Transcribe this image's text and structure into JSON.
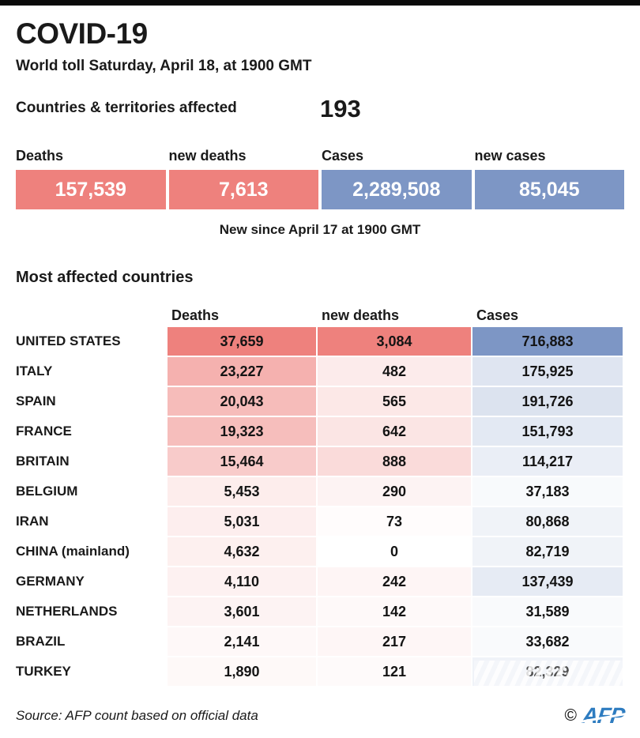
{
  "page": {
    "title": "COVID-19",
    "subtitle": "World toll Saturday, April 18, at 1900 GMT"
  },
  "affected": {
    "label": "Countries & territories affected",
    "value": "193"
  },
  "summary": {
    "note": "New since April 17 at 1900 GMT",
    "cells": [
      {
        "label": "Deaths",
        "value": 157539,
        "color": "red"
      },
      {
        "label": "new deaths",
        "value": 7613,
        "color": "red"
      },
      {
        "label": "Cases",
        "value": 2289508,
        "color": "blue"
      },
      {
        "label": "new cases",
        "value": 85045,
        "color": "blue"
      }
    ]
  },
  "chart_data": {
    "type": "table",
    "title": "Most affected countries",
    "columns": [
      "Deaths",
      "new deaths",
      "Cases"
    ],
    "rows": [
      {
        "country": "UNITED STATES",
        "deaths": 37659,
        "new_deaths": 3084,
        "cases": 716883
      },
      {
        "country": "ITALY",
        "deaths": 23227,
        "new_deaths": 482,
        "cases": 175925
      },
      {
        "country": "SPAIN",
        "deaths": 20043,
        "new_deaths": 565,
        "cases": 191726
      },
      {
        "country": "FRANCE",
        "deaths": 19323,
        "new_deaths": 642,
        "cases": 151793
      },
      {
        "country": "BRITAIN",
        "deaths": 15464,
        "new_deaths": 888,
        "cases": 114217
      },
      {
        "country": "BELGIUM",
        "deaths": 5453,
        "new_deaths": 290,
        "cases": 37183
      },
      {
        "country": "IRAN",
        "deaths": 5031,
        "new_deaths": 73,
        "cases": 80868
      },
      {
        "country": "CHINA (mainland)",
        "deaths": 4632,
        "new_deaths": 0,
        "cases": 82719
      },
      {
        "country": "GERMANY",
        "deaths": 4110,
        "new_deaths": 242,
        "cases": 137439
      },
      {
        "country": "NETHERLANDS",
        "deaths": 3601,
        "new_deaths": 142,
        "cases": 31589
      },
      {
        "country": "BRAZIL",
        "deaths": 2141,
        "new_deaths": 217,
        "cases": 33682
      },
      {
        "country": "TURKEY",
        "deaths": 1890,
        "new_deaths": 121,
        "cases": 82329
      }
    ],
    "heatmap": {
      "description": "cell background interpolates white to base color, linear by value / column max",
      "deaths_base": "#ee817d",
      "cases_base": "#7d96c5"
    }
  },
  "footer": {
    "source": "Source: AFP count based on official data",
    "copyright": "©",
    "logo": "AFP"
  },
  "colors": {
    "red": "#ee817d",
    "blue": "#7d96c5",
    "topbar": "#0a0a0a",
    "text": "#1a1a1a",
    "logo_blue": "#2e7cc0"
  }
}
